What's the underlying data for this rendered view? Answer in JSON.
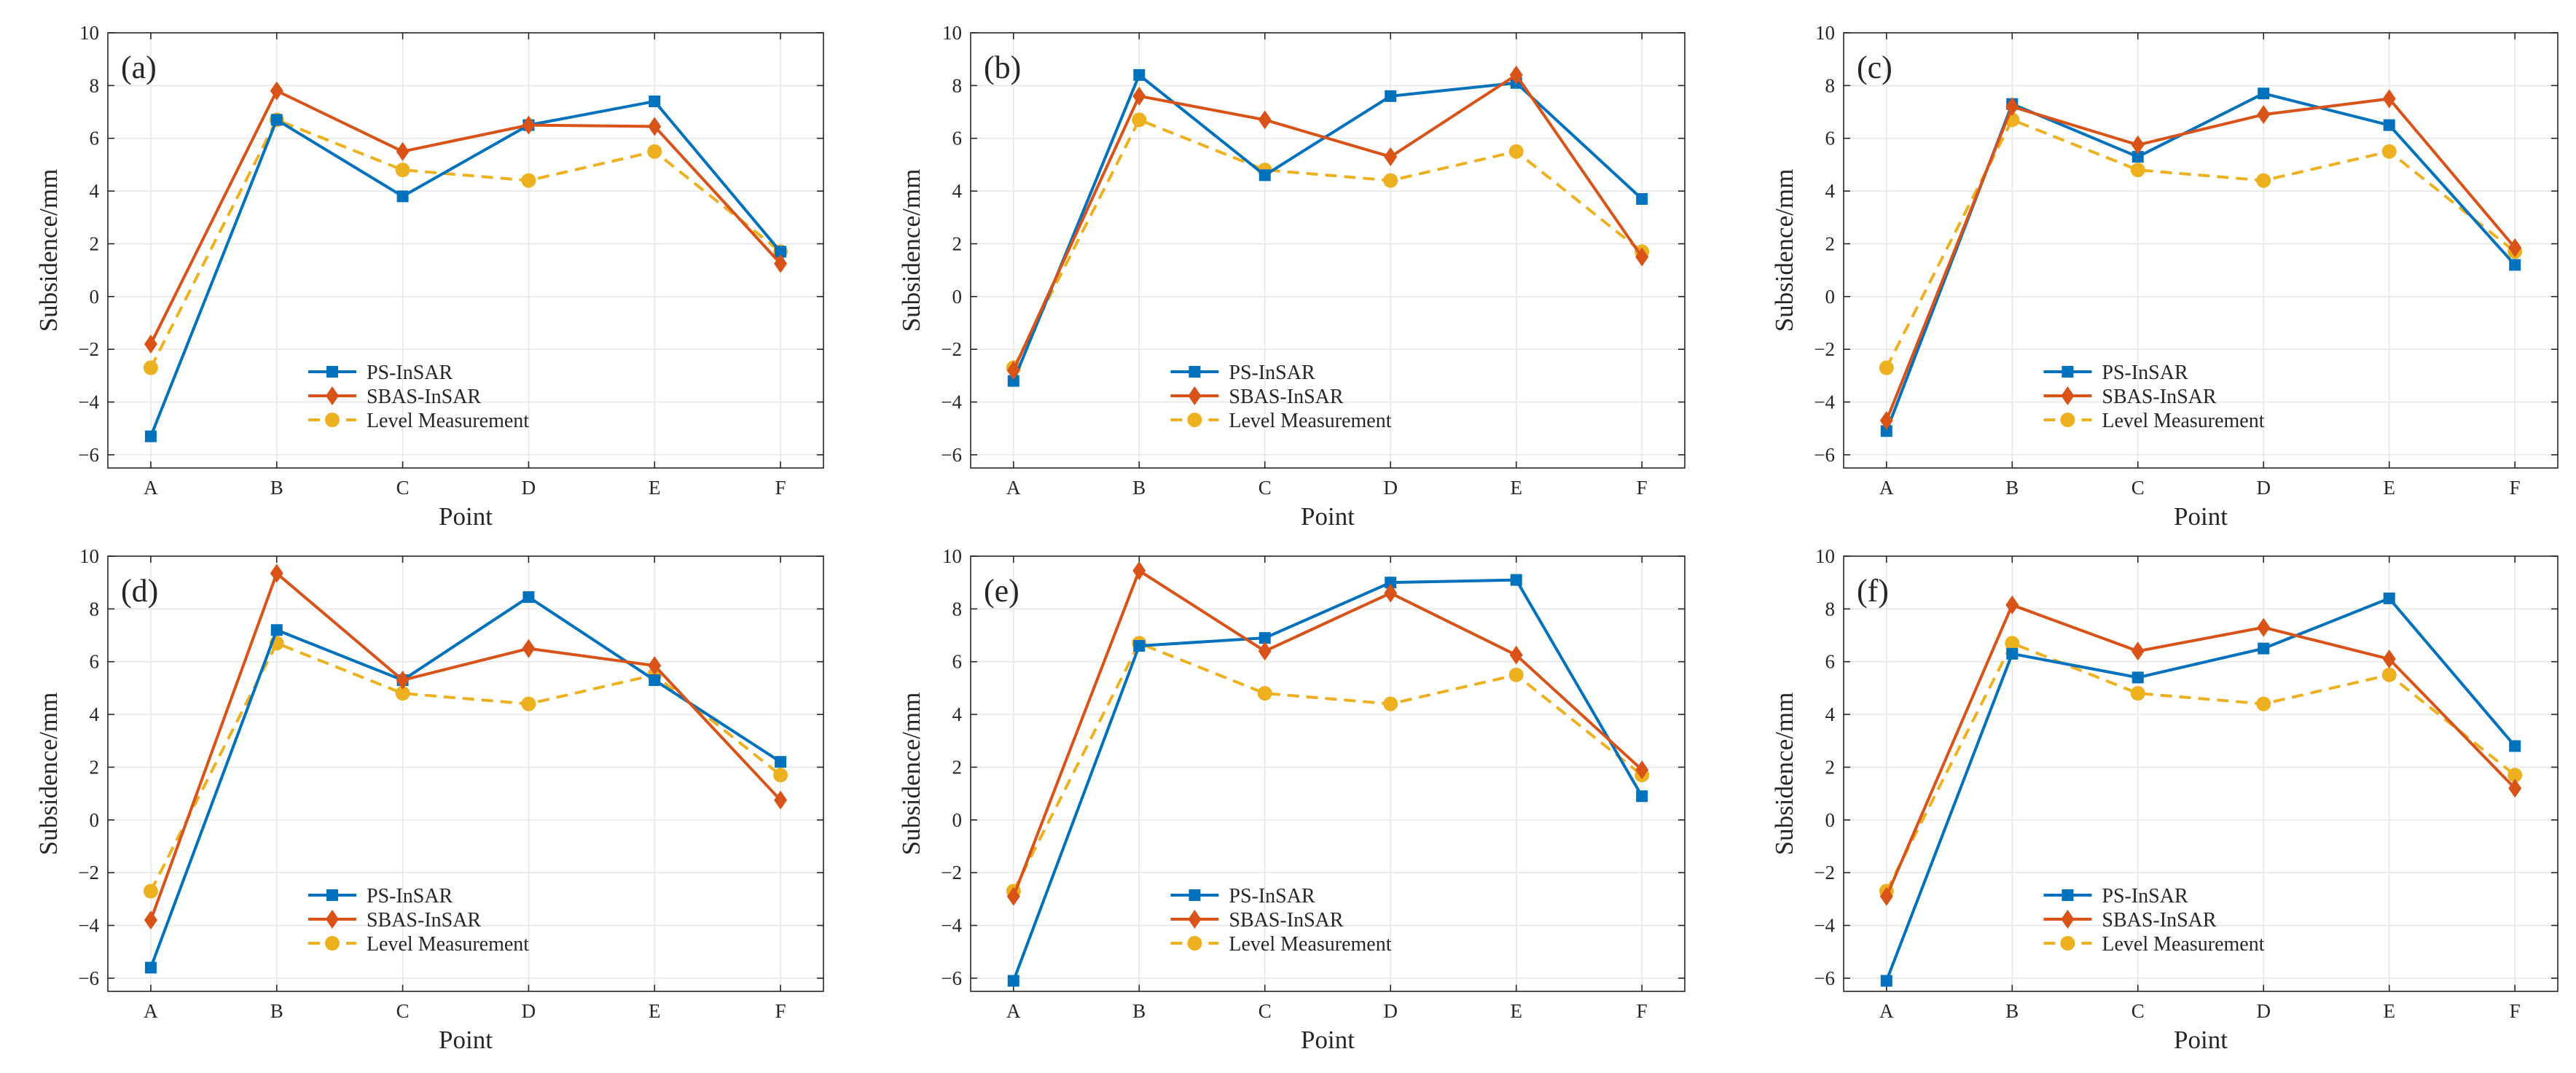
{
  "figure": {
    "type": "multi-panel line chart",
    "colors": {
      "ps_insar": "#0072BD",
      "sbas_insar": "#D95319",
      "level_measurement": "#EDB120",
      "grid": "#e6e6e6",
      "axes": "#262626"
    }
  },
  "chart_data": [
    {
      "panel": "(a)",
      "type": "line",
      "categories": [
        "A",
        "B",
        "C",
        "D",
        "E",
        "F"
      ],
      "xlabel": "Point",
      "ylabel": "Subsidence/mm",
      "ylim": [
        -6.5,
        10
      ],
      "yticks": [
        -6,
        -4,
        -2,
        0,
        2,
        4,
        6,
        8,
        10
      ],
      "grid": true,
      "legend_position": "lower-center",
      "series": [
        {
          "name": "PS-InSAR",
          "marker": "square",
          "style": "solid",
          "color": "#0072BD",
          "values": [
            -5.3,
            6.7,
            3.8,
            6.5,
            7.4,
            1.7
          ]
        },
        {
          "name": "SBAS-InSAR",
          "marker": "diamond",
          "style": "solid",
          "color": "#D95319",
          "values": [
            -1.8,
            7.8,
            5.5,
            6.5,
            6.45,
            1.25
          ]
        },
        {
          "name": "Level Measurement",
          "marker": "circle",
          "style": "dashed",
          "color": "#EDB120",
          "values": [
            -2.7,
            6.7,
            4.8,
            4.4,
            5.5,
            1.7
          ]
        }
      ]
    },
    {
      "panel": "(b)",
      "type": "line",
      "categories": [
        "A",
        "B",
        "C",
        "D",
        "E",
        "F"
      ],
      "xlabel": "Point",
      "ylabel": "Subsidence/mm",
      "ylim": [
        -6.5,
        10
      ],
      "yticks": [
        -6,
        -4,
        -2,
        0,
        2,
        4,
        6,
        8,
        10
      ],
      "grid": true,
      "legend_position": "lower-center",
      "series": [
        {
          "name": "PS-InSAR",
          "marker": "square",
          "style": "solid",
          "color": "#0072BD",
          "values": [
            -3.2,
            8.4,
            4.6,
            7.6,
            8.1,
            3.7
          ]
        },
        {
          "name": "SBAS-InSAR",
          "marker": "diamond",
          "style": "solid",
          "color": "#D95319",
          "values": [
            -2.8,
            7.6,
            6.7,
            5.3,
            8.4,
            1.5
          ]
        },
        {
          "name": "Level Measurement",
          "marker": "circle",
          "style": "dashed",
          "color": "#EDB120",
          "values": [
            -2.7,
            6.7,
            4.8,
            4.4,
            5.5,
            1.7
          ]
        }
      ]
    },
    {
      "panel": "(c)",
      "type": "line",
      "categories": [
        "A",
        "B",
        "C",
        "D",
        "E",
        "F"
      ],
      "xlabel": "Point",
      "ylabel": "Subsidence/mm",
      "ylim": [
        -6.5,
        10
      ],
      "yticks": [
        -6,
        -4,
        -2,
        0,
        2,
        4,
        6,
        8,
        10
      ],
      "grid": true,
      "legend_position": "lower-center",
      "series": [
        {
          "name": "PS-InSAR",
          "marker": "square",
          "style": "solid",
          "color": "#0072BD",
          "values": [
            -5.1,
            7.3,
            5.3,
            7.7,
            6.5,
            1.2
          ]
        },
        {
          "name": "SBAS-InSAR",
          "marker": "diamond",
          "style": "solid",
          "color": "#D95319",
          "values": [
            -4.7,
            7.2,
            5.75,
            6.9,
            7.5,
            1.85
          ]
        },
        {
          "name": "Level Measurement",
          "marker": "circle",
          "style": "dashed",
          "color": "#EDB120",
          "values": [
            -2.7,
            6.7,
            4.8,
            4.4,
            5.5,
            1.7
          ]
        }
      ]
    },
    {
      "panel": "(d)",
      "type": "line",
      "categories": [
        "A",
        "B",
        "C",
        "D",
        "E",
        "F"
      ],
      "xlabel": "Point",
      "ylabel": "Subsidence/mm",
      "ylim": [
        -6.5,
        10
      ],
      "yticks": [
        -6,
        -4,
        -2,
        0,
        2,
        4,
        6,
        8,
        10
      ],
      "grid": true,
      "legend_position": "lower-center",
      "series": [
        {
          "name": "PS-InSAR",
          "marker": "square",
          "style": "solid",
          "color": "#0072BD",
          "values": [
            -5.6,
            7.2,
            5.3,
            8.45,
            5.3,
            2.2
          ]
        },
        {
          "name": "SBAS-InSAR",
          "marker": "diamond",
          "style": "solid",
          "color": "#D95319",
          "values": [
            -3.8,
            9.35,
            5.3,
            6.5,
            5.85,
            0.75
          ]
        },
        {
          "name": "Level Measurement",
          "marker": "circle",
          "style": "dashed",
          "color": "#EDB120",
          "values": [
            -2.7,
            6.7,
            4.8,
            4.4,
            5.5,
            1.7
          ]
        }
      ]
    },
    {
      "panel": "(e)",
      "type": "line",
      "categories": [
        "A",
        "B",
        "C",
        "D",
        "E",
        "F"
      ],
      "xlabel": "Point",
      "ylabel": "Subsidence/mm",
      "ylim": [
        -6.5,
        10
      ],
      "yticks": [
        -6,
        -4,
        -2,
        0,
        2,
        4,
        6,
        8,
        10
      ],
      "grid": true,
      "legend_position": "lower-center",
      "series": [
        {
          "name": "PS-InSAR",
          "marker": "square",
          "style": "solid",
          "color": "#0072BD",
          "values": [
            -6.1,
            6.6,
            6.9,
            9.0,
            9.1,
            0.9
          ]
        },
        {
          "name": "SBAS-InSAR",
          "marker": "diamond",
          "style": "solid",
          "color": "#D95319",
          "values": [
            -2.9,
            9.45,
            6.4,
            8.6,
            6.25,
            1.9
          ]
        },
        {
          "name": "Level Measurement",
          "marker": "circle",
          "style": "dashed",
          "color": "#EDB120",
          "values": [
            -2.7,
            6.7,
            4.8,
            4.4,
            5.5,
            1.7
          ]
        }
      ]
    },
    {
      "panel": "(f)",
      "type": "line",
      "categories": [
        "A",
        "B",
        "C",
        "D",
        "E",
        "F"
      ],
      "xlabel": "Point",
      "ylabel": "Subsidence/mm",
      "ylim": [
        -6.5,
        10
      ],
      "yticks": [
        -6,
        -4,
        -2,
        0,
        2,
        4,
        6,
        8,
        10
      ],
      "grid": true,
      "legend_position": "lower-center",
      "series": [
        {
          "name": "PS-InSAR",
          "marker": "square",
          "style": "solid",
          "color": "#0072BD",
          "values": [
            -6.1,
            6.3,
            5.4,
            6.5,
            8.4,
            2.8
          ]
        },
        {
          "name": "SBAS-InSAR",
          "marker": "diamond",
          "style": "solid",
          "color": "#D95319",
          "values": [
            -2.9,
            8.15,
            6.4,
            7.3,
            6.1,
            1.2
          ]
        },
        {
          "name": "Level Measurement",
          "marker": "circle",
          "style": "dashed",
          "color": "#EDB120",
          "values": [
            -2.7,
            6.7,
            4.8,
            4.4,
            5.5,
            1.7
          ]
        }
      ]
    }
  ]
}
